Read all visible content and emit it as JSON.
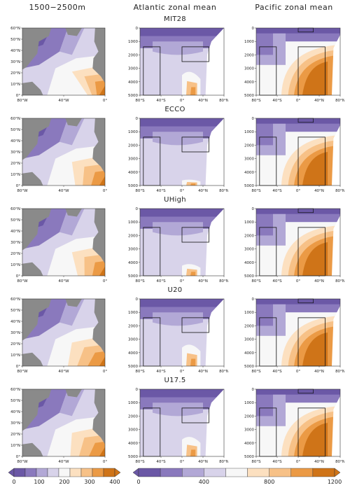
{
  "columns": [
    "1500−2500m",
    "Atlantic zonal mean",
    "Pacific zonal mean"
  ],
  "rows": [
    "MIT28",
    "ECCO",
    "UHigh",
    "U20",
    "U17.5"
  ],
  "map_axes": {
    "lat_ticks": [
      "0°",
      "10°N",
      "20°N",
      "30°N",
      "40°N",
      "50°N",
      "60°N"
    ],
    "lon_ticks": [
      "80°W",
      "40°W",
      "0°"
    ]
  },
  "section_axes": {
    "depth_ticks": [
      "0",
      "1000",
      "2000",
      "3000",
      "4000",
      "5000"
    ],
    "lat_ticks": [
      "80°S",
      "40°S",
      "0°",
      "40°N",
      "80°N"
    ]
  },
  "colorbars": [
    {
      "labels": [
        "0",
        "100",
        "200",
        "300",
        "400"
      ]
    },
    {
      "labels": [
        "0",
        "400",
        "800",
        "1200"
      ]
    }
  ],
  "colors": {
    "deep_purple": "#6b58a6",
    "purple": "#8a79bd",
    "lavender": "#b2a8d6",
    "pale_lavender": "#d8d3ea",
    "white": "#f7f7f7",
    "pale_peach": "#fce0c0",
    "peach": "#f7c187",
    "orange": "#eb9a45",
    "dark_orange": "#cf7418",
    "land": "#8a8a8a"
  }
}
